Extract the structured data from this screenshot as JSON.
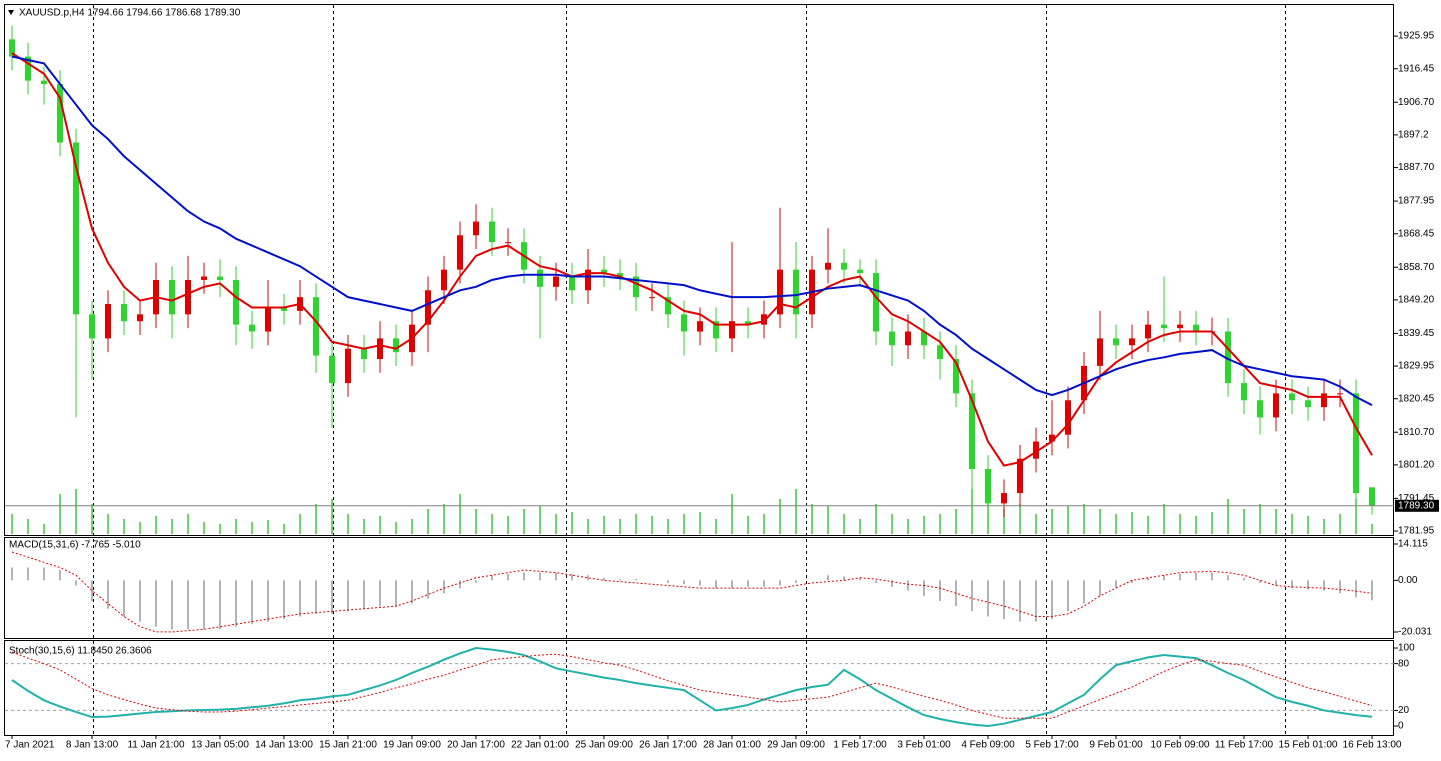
{
  "chart_data": [
    {
      "type": "candlestick",
      "title": "XAUUSD.p,H4  1794.66 1794.66 1786.68 1789.30",
      "categories": [
        "7 Jan 2021",
        null,
        null,
        null,
        null,
        "8 Jan 13:00",
        null,
        null,
        null,
        "11 Jan 21:00",
        null,
        null,
        null,
        "13 Jan 05:00",
        null,
        null,
        null,
        "14 Jan 13:00",
        null,
        null,
        null,
        "15 Jan 21:00",
        null,
        null,
        null,
        "19 Jan 09:00",
        null,
        null,
        null,
        "20 Jan 17:00",
        null,
        null,
        null,
        "22 Jan 01:00",
        null,
        null,
        null,
        "25 Jan 09:00",
        null,
        null,
        null,
        "26 Jan 17:00",
        null,
        null,
        null,
        "28 Jan 01:00",
        null,
        null,
        null,
        "29 Jan 09:00",
        null,
        null,
        null,
        "1 Feb 17:00",
        null,
        null,
        null,
        "3 Feb 01:00",
        null,
        null,
        null,
        "4 Feb 09:00",
        null,
        null,
        null,
        "5 Feb 17:00",
        null,
        null,
        null,
        "9 Feb 01:00",
        null,
        null,
        null,
        "10 Feb 09:00",
        null,
        null,
        null,
        "11 Feb 17:00",
        null,
        null,
        null,
        "15 Feb 01:00",
        null,
        null,
        null,
        "16 Feb 13:00"
      ],
      "open": [
        1925,
        1920,
        1913,
        1912,
        1895,
        1845,
        1838,
        1848,
        1843,
        1845,
        1855,
        1845,
        1855,
        1856,
        1855,
        1842,
        1840,
        1847,
        1846,
        1850,
        1833,
        1825,
        1835,
        1832,
        1838,
        1834,
        1842,
        1852,
        1858,
        1868,
        1872,
        1866,
        1866,
        1858,
        1853,
        1856,
        1852,
        1858,
        1857,
        1856,
        1850,
        1850,
        1845,
        1840,
        1843,
        1838,
        1843,
        1842,
        1845,
        1858,
        1845,
        1858,
        1860,
        1858,
        1857,
        1840,
        1836,
        1840,
        1836,
        1832,
        1822,
        1800,
        1790,
        1793,
        1803,
        1808,
        1810,
        1820,
        1830,
        1838,
        1836,
        1838,
        1842,
        1841,
        1842,
        1840,
        1840,
        1825,
        1820,
        1815,
        1822,
        1820,
        1818,
        1822,
        1822,
        1794.66
      ],
      "high": [
        1929,
        1924,
        1917,
        1916,
        1899,
        1849,
        1852,
        1852,
        1849,
        1860,
        1859,
        1862,
        1860,
        1861,
        1859,
        1846,
        1855,
        1851,
        1855,
        1854,
        1837,
        1839,
        1839,
        1843,
        1842,
        1846,
        1856,
        1862,
        1872,
        1877,
        1876,
        1870,
        1870,
        1862,
        1860,
        1860,
        1864,
        1862,
        1861,
        1860,
        1854,
        1854,
        1849,
        1847,
        1847,
        1866,
        1847,
        1849,
        1876,
        1866,
        1862,
        1870,
        1864,
        1861,
        1861,
        1844,
        1845,
        1844,
        1840,
        1836,
        1826,
        1804,
        1797,
        1807,
        1812,
        1820,
        1824,
        1834,
        1846,
        1842,
        1842,
        1846,
        1856,
        1846,
        1846,
        1844,
        1844,
        1829,
        1824,
        1826,
        1826,
        1824,
        1826,
        1826,
        1826,
        1794.66
      ],
      "low": [
        1916,
        1909,
        1906,
        1891,
        1815,
        1826,
        1834,
        1839,
        1839,
        1841,
        1838,
        1841,
        1851,
        1850,
        1836,
        1835,
        1836,
        1842,
        1842,
        1828,
        1812,
        1821,
        1828,
        1828,
        1830,
        1830,
        1834,
        1848,
        1854,
        1864,
        1862,
        1862,
        1854,
        1838,
        1849,
        1848,
        1848,
        1853,
        1852,
        1846,
        1846,
        1841,
        1833,
        1836,
        1834,
        1834,
        1838,
        1838,
        1841,
        1838,
        1841,
        1854,
        1854,
        1853,
        1836,
        1830,
        1832,
        1832,
        1826,
        1818,
        1785,
        1784,
        1786,
        1789,
        1799,
        1804,
        1806,
        1816,
        1826,
        1832,
        1832,
        1834,
        1837,
        1837,
        1836,
        1836,
        1821,
        1816,
        1810,
        1811,
        1816,
        1814,
        1814,
        1818,
        1789,
        1786.68
      ],
      "close": [
        1920,
        1913,
        1912,
        1895,
        1845,
        1838,
        1848,
        1843,
        1845,
        1855,
        1845,
        1855,
        1856,
        1855,
        1842,
        1840,
        1847,
        1846,
        1850,
        1833,
        1825,
        1835,
        1832,
        1838,
        1834,
        1842,
        1852,
        1858,
        1868,
        1872,
        1866,
        1866,
        1858,
        1853,
        1856,
        1852,
        1858,
        1857,
        1856,
        1850,
        1850,
        1845,
        1840,
        1843,
        1838,
        1843,
        1842,
        1845,
        1858,
        1845,
        1858,
        1860,
        1858,
        1857,
        1840,
        1836,
        1840,
        1836,
        1832,
        1822,
        1800,
        1790,
        1793,
        1803,
        1808,
        1810,
        1820,
        1830,
        1838,
        1836,
        1838,
        1842,
        1841,
        1842,
        1840,
        1840,
        1825,
        1820,
        1815,
        1822,
        1820,
        1818,
        1822,
        1822,
        1793,
        1789.3
      ],
      "up_color": "#e00000",
      "down_color": "#2ed52e",
      "lines": [
        {
          "color": "#e00000",
          "values": [
            1921,
            1918,
            1915,
            1908,
            1888,
            1870,
            1860,
            1853,
            1849,
            1850,
            1849,
            1851,
            1853,
            1854,
            1850,
            1847,
            1847,
            1847,
            1848,
            1843,
            1837,
            1836,
            1835,
            1836,
            1835,
            1838,
            1843,
            1849,
            1856,
            1862,
            1864,
            1865,
            1862,
            1859,
            1858,
            1856,
            1857,
            1857,
            1856,
            1854,
            1852,
            1849,
            1846,
            1845,
            1842,
            1842,
            1842,
            1843,
            1848,
            1847,
            1850,
            1853,
            1855,
            1856,
            1850,
            1845,
            1843,
            1840,
            1837,
            1831,
            1820,
            1808,
            1801,
            1802,
            1805,
            1808,
            1813,
            1820,
            1827,
            1831,
            1834,
            1837,
            1839,
            1840,
            1840,
            1840,
            1835,
            1830,
            1825,
            1824,
            1823,
            1821,
            1821,
            1821,
            1812,
            1804
          ]
        },
        {
          "color": "#0010c8",
          "values": [
            1920,
            1919,
            1918,
            1912,
            1906,
            1900,
            1896,
            1891,
            1887,
            1883,
            1879,
            1875,
            1872,
            1870,
            1867,
            1865,
            1863,
            1861,
            1859,
            1856,
            1853,
            1850,
            1849,
            1848,
            1847,
            1846,
            1848,
            1850,
            1852,
            1853,
            1855,
            1856,
            1856.5,
            1856.5,
            1856.5,
            1856,
            1856,
            1856,
            1855.5,
            1855,
            1854.5,
            1854,
            1853.5,
            1852,
            1851,
            1850,
            1850,
            1850,
            1850.3,
            1850.6,
            1851.5,
            1852.5,
            1853,
            1853.5,
            1852,
            1850.5,
            1849,
            1846,
            1842,
            1839,
            1835,
            1832,
            1829,
            1826,
            1823,
            1821.5,
            1823,
            1825,
            1827,
            1829,
            1830.5,
            1831.7,
            1832.5,
            1833.5,
            1834,
            1834.6,
            1832,
            1830,
            1829,
            1828,
            1827,
            1826.5,
            1826,
            1824,
            1821,
            1818.6
          ]
        }
      ],
      "volume": {
        "color": "#33cc33",
        "values": [
          20,
          15,
          10,
          40,
          45,
          30,
          20,
          15,
          12,
          18,
          15,
          20,
          12,
          10,
          15,
          12,
          14,
          10,
          20,
          30,
          35,
          20,
          15,
          18,
          12,
          15,
          25,
          30,
          40,
          25,
          20,
          18,
          25,
          28,
          20,
          22,
          15,
          18,
          15,
          20,
          18,
          15,
          20,
          22,
          15,
          40,
          18,
          20,
          35,
          45,
          30,
          28,
          20,
          15,
          30,
          20,
          15,
          18,
          20,
          25,
          45,
          40,
          25,
          30,
          20,
          25,
          28,
          30,
          25,
          20,
          22,
          18,
          30,
          20,
          18,
          22,
          35,
          25,
          30,
          25,
          20,
          18,
          15,
          20,
          35,
          10
        ]
      },
      "last_price": {
        "value": 1789.3,
        "label": "1789.30"
      },
      "ylim": [
        1780.8,
        1935.0
      ],
      "yticks": [
        1925.95,
        1916.45,
        {
          "value": 1906.7,
          "label": "1906.70"
        },
        1897.2,
        {
          "value": 1887.7,
          "label": "1887.70"
        },
        1877.95,
        1868.45,
        {
          "value": 1858.7,
          "label": "1858.70"
        },
        {
          "value": 1849.2,
          "label": "1849.20"
        },
        1839.45,
        1829.95,
        1820.45,
        {
          "value": 1810.7,
          "label": "1810.70"
        },
        {
          "value": 1801.2,
          "label": "1801.20"
        },
        1791.45,
        1781.95
      ]
    },
    {
      "type": "macd",
      "title": "MACD(15,31,6) -7.765 -5.010",
      "histogram": {
        "color": "#b4b4b4",
        "values": [
          5,
          5,
          5,
          4,
          -2,
          -8,
          -11,
          -14,
          -16,
          -18,
          -19,
          -19,
          -19,
          -19,
          -18,
          -17,
          -16,
          -15,
          -14,
          -13,
          -13,
          -12,
          -11,
          -10,
          -10,
          -9,
          -7,
          -5,
          -3,
          -1,
          2,
          2.5,
          3,
          3,
          3,
          2.5,
          2,
          1,
          0.5,
          0.5,
          0,
          -1,
          -1.5,
          -2,
          -3,
          -3,
          -2.5,
          -2.5,
          -2,
          -1,
          0,
          2,
          1.5,
          1,
          -1,
          -2.5,
          -4,
          -6,
          -8,
          -10,
          -12,
          -14,
          -15,
          -16,
          -16,
          -15,
          -12,
          -9,
          -6,
          -3,
          -1,
          1,
          2,
          2.5,
          3,
          3,
          2,
          1,
          -1,
          -2,
          -3,
          -3.5,
          -4,
          -5,
          -6.5,
          -7.765
        ]
      },
      "signal": {
        "color": "#e00000",
        "values": [
          11,
          9,
          7,
          5,
          2,
          -4,
          -9,
          -14,
          -18,
          -20,
          -20,
          -19.5,
          -19,
          -18,
          -17,
          -16,
          -15,
          -14,
          -13,
          -12.5,
          -12,
          -11.5,
          -11,
          -10.5,
          -10,
          -8,
          -5.5,
          -3,
          -1,
          1,
          2,
          3,
          4,
          3.5,
          3,
          2,
          1,
          0,
          -0.5,
          -1,
          -1.5,
          -2,
          -2.5,
          -3,
          -3,
          -3,
          -3,
          -3,
          -3,
          -2,
          -1,
          -0.5,
          0,
          1,
          0.5,
          -0.5,
          -1.5,
          -2,
          -3,
          -5,
          -7,
          -8.5,
          -10,
          -12,
          -14,
          -14,
          -13,
          -10,
          -6,
          -3,
          0,
          1,
          2,
          3,
          3.3,
          3.5,
          3,
          2,
          0,
          -2,
          -2.5,
          -2.8,
          -3,
          -3.5,
          -4.2,
          -5.01
        ]
      },
      "ylim": [
        -22.36,
        16.44
      ],
      "yticks": [
        14.115,
        {
          "value": 0,
          "label": "0.00"
        },
        -20.031
      ]
    },
    {
      "type": "stochastic",
      "title": "Stoch(30,15,6) 11.8450 26.3606",
      "main": {
        "color": "#20b2aa",
        "values": [
          59,
          45,
          33,
          25,
          18,
          11.5,
          12,
          14,
          16,
          18,
          19,
          20,
          20.5,
          21,
          22,
          24,
          26,
          29,
          33,
          35,
          38,
          40,
          46,
          52,
          59,
          68,
          76,
          85,
          93,
          100,
          98,
          95,
          91,
          83,
          74,
          70,
          66,
          62,
          59,
          55,
          52,
          49,
          46,
          33,
          20,
          23,
          27,
          34,
          40,
          46,
          50,
          53,
          72,
          60,
          46,
          35,
          24,
          14,
          9,
          5,
          2,
          0,
          3,
          8,
          13,
          18,
          29,
          40,
          60,
          78,
          83,
          88,
          91,
          89,
          87,
          78,
          68,
          59,
          48,
          37,
          31,
          26,
          20,
          17,
          14,
          11.845
        ]
      },
      "signal": {
        "color": "#e00000",
        "values": [
          95,
          87,
          80,
          72,
          60,
          48,
          40,
          34,
          28,
          23,
          21,
          19,
          18,
          18,
          19,
          21,
          23,
          25,
          27,
          29,
          31,
          33,
          38,
          43,
          49,
          54,
          60,
          65,
          72,
          78,
          85,
          87,
          89,
          91,
          92,
          89,
          85,
          81,
          78,
          72,
          65,
          58,
          52,
          46,
          43,
          40,
          37,
          34,
          31,
          33,
          35,
          37,
          43,
          49,
          55,
          50,
          44,
          38,
          33,
          27,
          20,
          15,
          10,
          10,
          10,
          10,
          18,
          26,
          34,
          42,
          50,
          60,
          70,
          78,
          85,
          83,
          80,
          78,
          70,
          63,
          56,
          49,
          44,
          38,
          32,
          26.3606
        ]
      },
      "levels": [
        80,
        20
      ],
      "ylim": [
        -11.5,
        109
      ],
      "yticks": [
        100,
        80,
        20,
        0
      ]
    }
  ]
}
